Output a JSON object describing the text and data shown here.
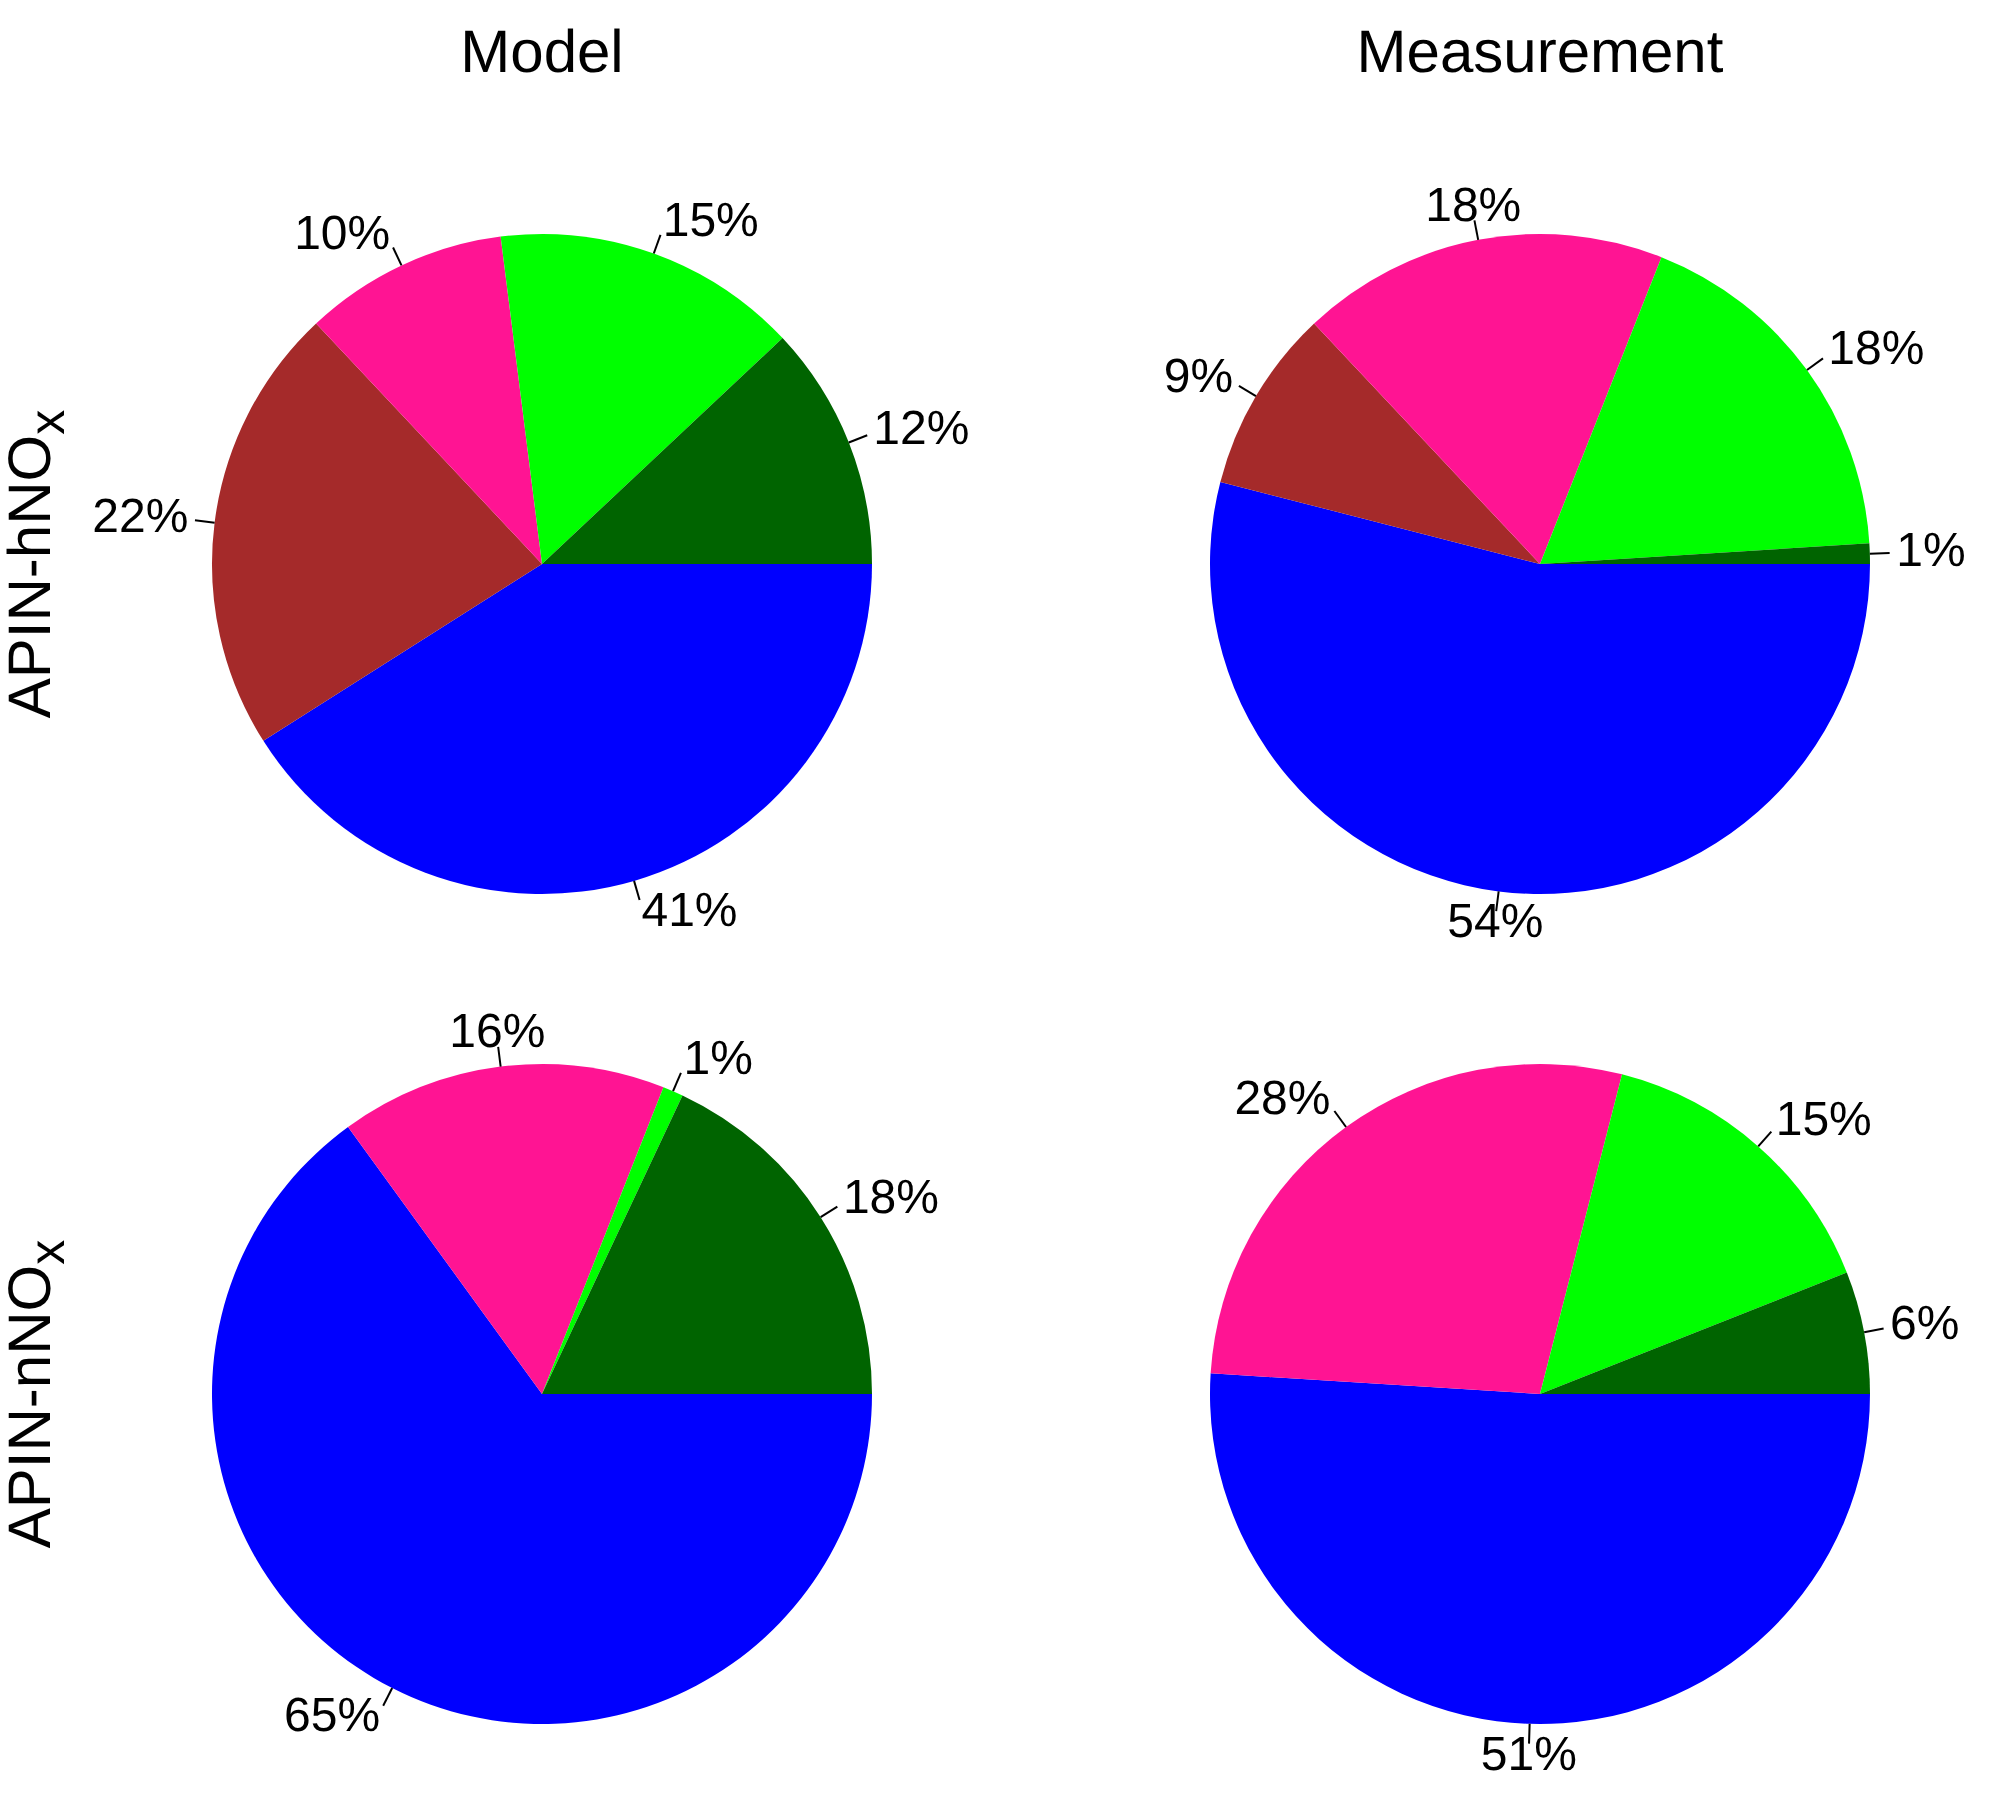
{
  "chart_data": [
    {
      "type": "pie",
      "title": "Model",
      "ylabel": "APIN-hNO$_{x}$",
      "categories": [
        null,
        null,
        null,
        null,
        null
      ],
      "values": [
        41,
        22,
        10,
        15,
        12
      ],
      "colors": [
        "#0000ff",
        "#a52a2a",
        "#ff1493",
        "#00ff00",
        "#006400"
      ],
      "value_labels": [
        "41%",
        "22%",
        "10%",
        "15%",
        "12%"
      ]
    },
    {
      "type": "pie",
      "title": "Measurement",
      "categories": [
        null,
        null,
        null,
        null,
        null
      ],
      "values": [
        54,
        9,
        18,
        18,
        1
      ],
      "colors": [
        "#0000ff",
        "#a52a2a",
        "#ff1493",
        "#00ff00",
        "#006400"
      ],
      "value_labels": [
        "54%",
        "9%",
        "18%",
        "18%",
        "1%"
      ]
    },
    {
      "type": "pie",
      "ylabel": "APIN-nNO$_{x}$",
      "categories": [
        null,
        null,
        null,
        null
      ],
      "values": [
        65,
        16,
        1,
        18
      ],
      "colors": [
        "#0000ff",
        "#ff1493",
        "#00ff00",
        "#006400"
      ],
      "value_labels": [
        "65%",
        "16%",
        "1%",
        "18%"
      ]
    },
    {
      "type": "pie",
      "categories": [
        null,
        null,
        null,
        null
      ],
      "values": [
        51,
        28,
        15,
        6
      ],
      "colors": [
        "#0000ff",
        "#ff1493",
        "#00ff00",
        "#006400"
      ],
      "value_labels": [
        "51%",
        "28%",
        "15%",
        "6%"
      ]
    }
  ]
}
